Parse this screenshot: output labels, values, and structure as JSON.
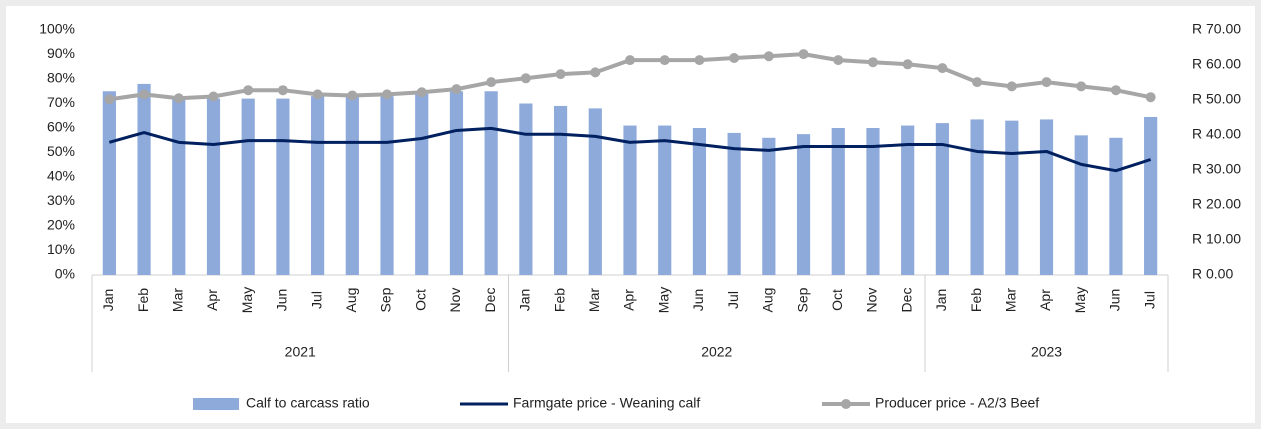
{
  "chart_data": {
    "type": "bar-line",
    "category_groups": [
      {
        "label": "2021",
        "categories": [
          "Jan",
          "Feb",
          "Mar",
          "Apr",
          "May",
          "Jun",
          "Jul",
          "Aug",
          "Sep",
          "Oct",
          "Nov",
          "Dec"
        ]
      },
      {
        "label": "2022",
        "categories": [
          "Jan",
          "Feb",
          "Mar",
          "Apr",
          "May",
          "Jun",
          "Jul",
          "Aug",
          "Sep",
          "Oct",
          "Nov",
          "Dec"
        ]
      },
      {
        "label": "2023",
        "categories": [
          "Jan",
          "Feb",
          "Mar",
          "Apr",
          "May",
          "Jun",
          "Jul"
        ]
      }
    ],
    "series": [
      {
        "name": "Calf to carcass ratio",
        "type": "bar",
        "axis": "y",
        "color": "#8eaadb",
        "values": [
          75,
          78,
          72,
          72,
          72,
          72,
          73,
          73,
          73,
          74,
          75,
          75,
          70,
          69,
          68,
          61,
          61,
          60,
          58,
          56,
          57.5,
          60,
          60,
          61,
          62,
          63.5,
          63,
          63.5,
          57,
          56,
          64.5
        ]
      },
      {
        "name": "Farmgate price - Weaning calf",
        "type": "line",
        "axis": "y2",
        "color": "#002060",
        "values": [
          37.9,
          40.7,
          37.9,
          37.3,
          38.4,
          38.4,
          37.9,
          37.9,
          37.9,
          39,
          41.3,
          41.9,
          40.2,
          40.2,
          39.6,
          37.9,
          38.4,
          37.3,
          36.1,
          35.6,
          36.7,
          36.7,
          36.7,
          37.3,
          37.3,
          35.3,
          34.7,
          35.3,
          31.6,
          29.8,
          33
        ]
      },
      {
        "name": "Producer price - A2/3 Beef",
        "type": "line",
        "axis": "y2",
        "color": "#a6a6a6",
        "markers": true,
        "values": [
          50.2,
          51.6,
          50.5,
          51,
          52.8,
          52.8,
          51.6,
          51.3,
          51.6,
          52.2,
          53.1,
          55.1,
          56.2,
          57.4,
          57.9,
          61.4,
          61.4,
          61.4,
          62,
          62.5,
          63.1,
          61.4,
          60.8,
          60.2,
          59.1,
          55.1,
          53.9,
          55.1,
          53.9,
          52.8,
          50.8
        ]
      }
    ],
    "ylim": [
      0,
      100
    ],
    "yticks": [
      {
        "value": 0,
        "label": "0%"
      },
      {
        "value": 10,
        "label": "10%"
      },
      {
        "value": 20,
        "label": "20%"
      },
      {
        "value": 30,
        "label": "30%"
      },
      {
        "value": 40,
        "label": "40%"
      },
      {
        "value": 50,
        "label": "50%"
      },
      {
        "value": 60,
        "label": "60%"
      },
      {
        "value": 70,
        "label": "70%"
      },
      {
        "value": 80,
        "label": "80%"
      },
      {
        "value": 90,
        "label": "90%"
      },
      {
        "value": 100,
        "label": "100%"
      }
    ],
    "y2lim": [
      0,
      70
    ],
    "y2ticks": [
      {
        "value": 0,
        "label": "R 0.00"
      },
      {
        "value": 10,
        "label": "R 10.00"
      },
      {
        "value": 20,
        "label": "R 20.00"
      },
      {
        "value": 30,
        "label": "R 30.00"
      },
      {
        "value": 40,
        "label": "R 40.00"
      },
      {
        "value": 50,
        "label": "R 50.00"
      },
      {
        "value": 60,
        "label": "R 60.00"
      },
      {
        "value": 70,
        "label": "R 70.00"
      }
    ],
    "legend": "bottom"
  }
}
